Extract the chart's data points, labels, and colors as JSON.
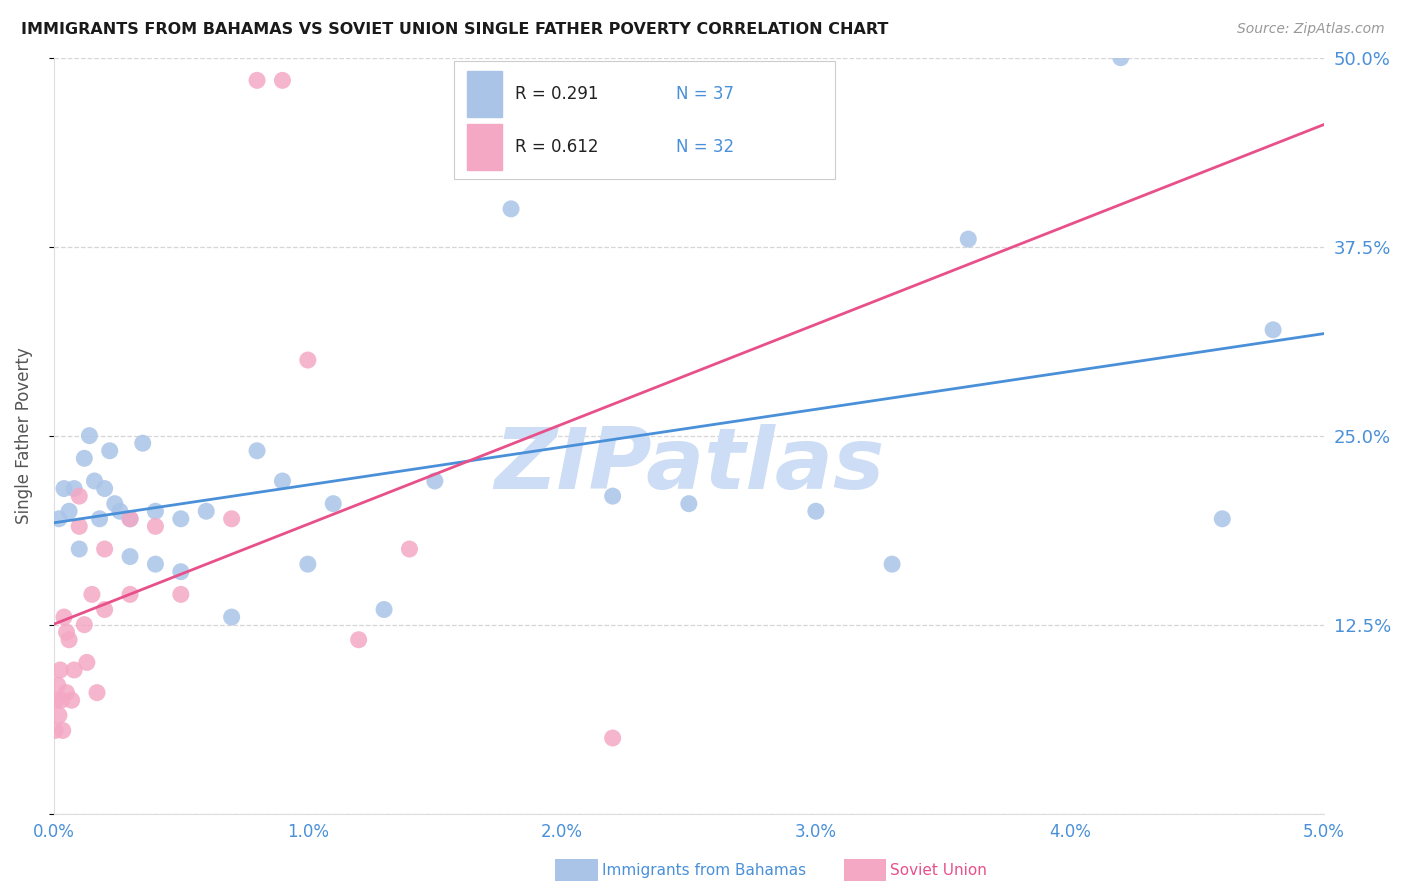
{
  "title": "IMMIGRANTS FROM BAHAMAS VS SOVIET UNION SINGLE FATHER POVERTY CORRELATION CHART",
  "source": "Source: ZipAtlas.com",
  "ylabel": "Single Father Poverty",
  "bahamas_R": 0.291,
  "bahamas_N": 37,
  "soviet_R": 0.612,
  "soviet_N": 32,
  "bahamas_color": "#aac4e8",
  "soviet_color": "#f4a8c4",
  "bahamas_line_color": "#4a90d9",
  "soviet_line_color": "#e8508a",
  "watermark": "ZIPatlas",
  "watermark_color": "#ccddf5",
  "background_color": "#ffffff",
  "title_color": "#1a1a1a",
  "tick_label_color": "#4a90d9",
  "legend_text_color": "#222222",
  "xlim": [
    0,
    0.05
  ],
  "ylim": [
    0,
    0.5
  ],
  "yticks": [
    0.0,
    0.125,
    0.25,
    0.375,
    0.5
  ],
  "ytick_labels": [
    "",
    "12.5%",
    "25.0%",
    "37.5%",
    "50.0%"
  ],
  "xticks": [
    0,
    0.01,
    0.02,
    0.03,
    0.04,
    0.05
  ],
  "xtick_labels": [
    "0.0%",
    "1.0%",
    "2.0%",
    "3.0%",
    "4.0%",
    "5.0%"
  ],
  "bahamas_x": [
    0.0002,
    0.0004,
    0.0006,
    0.0008,
    0.001,
    0.0012,
    0.0014,
    0.0016,
    0.0018,
    0.002,
    0.0022,
    0.0024,
    0.0026,
    0.003,
    0.003,
    0.0035,
    0.004,
    0.004,
    0.005,
    0.005,
    0.006,
    0.007,
    0.008,
    0.009,
    0.01,
    0.011,
    0.013,
    0.015,
    0.018,
    0.022,
    0.025,
    0.03,
    0.033,
    0.036,
    0.042,
    0.046,
    0.048
  ],
  "bahamas_y": [
    0.195,
    0.215,
    0.2,
    0.215,
    0.175,
    0.235,
    0.25,
    0.22,
    0.195,
    0.215,
    0.24,
    0.205,
    0.2,
    0.195,
    0.17,
    0.245,
    0.2,
    0.165,
    0.195,
    0.16,
    0.2,
    0.13,
    0.24,
    0.22,
    0.165,
    0.205,
    0.135,
    0.22,
    0.4,
    0.21,
    0.205,
    0.2,
    0.165,
    0.38,
    0.5,
    0.195,
    0.32
  ],
  "soviet_x": [
    5e-05,
    0.0001,
    0.00015,
    0.0002,
    0.00025,
    0.0003,
    0.00035,
    0.0004,
    0.0005,
    0.0005,
    0.0006,
    0.0007,
    0.0008,
    0.001,
    0.001,
    0.0012,
    0.0013,
    0.0015,
    0.0017,
    0.002,
    0.002,
    0.003,
    0.003,
    0.004,
    0.005,
    0.007,
    0.008,
    0.009,
    0.01,
    0.012,
    0.014,
    0.022
  ],
  "soviet_y": [
    0.055,
    0.075,
    0.085,
    0.065,
    0.095,
    0.075,
    0.055,
    0.13,
    0.12,
    0.08,
    0.115,
    0.075,
    0.095,
    0.21,
    0.19,
    0.125,
    0.1,
    0.145,
    0.08,
    0.175,
    0.135,
    0.195,
    0.145,
    0.19,
    0.145,
    0.195,
    0.485,
    0.485,
    0.3,
    0.115,
    0.175,
    0.05
  ]
}
